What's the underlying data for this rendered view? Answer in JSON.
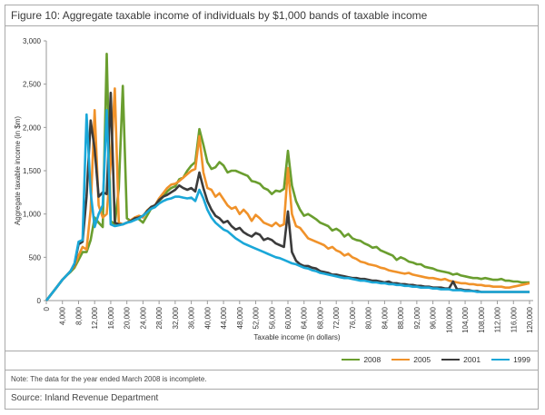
{
  "figure": {
    "title": "Figure 10: Aggregate taxable income of individuals by $1,000 bands of taxable income",
    "note": "Note: The data for the year ended March 2008 is incomplete.",
    "source": "Source: Inland Revenue Department"
  },
  "chart_data": {
    "type": "line",
    "title": "Figure 10: Aggregate taxable income of individuals by $1,000 bands of taxable income",
    "xlabel": "Taxable income (in dollars)",
    "ylabel": "Aggregate taxable income (in $m)",
    "xlim": [
      0,
      120000
    ],
    "ylim": [
      0,
      3000
    ],
    "x_ticks": [
      0,
      4000,
      8000,
      12000,
      16000,
      20000,
      24000,
      28000,
      32000,
      36000,
      40000,
      44000,
      48000,
      52000,
      56000,
      60000,
      64000,
      68000,
      72000,
      76000,
      80000,
      84000,
      88000,
      92000,
      96000,
      100000,
      104000,
      108000,
      112000,
      116000,
      120000
    ],
    "x_tick_labels": [
      "0",
      "4,000",
      "8,000",
      "12,000",
      "16,000",
      "20,000",
      "24,000",
      "28,000",
      "32,000",
      "36,000",
      "40,000",
      "44,000",
      "48,000",
      "52,000",
      "56,000",
      "60,000",
      "64,000",
      "68,000",
      "72,000",
      "76,000",
      "80,000",
      "84,000",
      "88,000",
      "92,000",
      "96,000",
      "100,000",
      "104,000",
      "108,000",
      "112,000",
      "116,000",
      "120,000"
    ],
    "y_ticks": [
      0,
      500,
      1000,
      1500,
      2000,
      2500,
      3000
    ],
    "y_tick_labels": [
      "0",
      "500",
      "1,000",
      "1,500",
      "2,000",
      "2,500",
      "3,000"
    ],
    "grid": false,
    "legend_position": "bottom-right",
    "x": [
      0,
      1000,
      2000,
      3000,
      4000,
      5000,
      6000,
      7000,
      8000,
      9000,
      10000,
      11000,
      12000,
      13000,
      14000,
      15000,
      16000,
      17000,
      18000,
      19000,
      20000,
      21000,
      22000,
      23000,
      24000,
      25000,
      26000,
      27000,
      28000,
      29000,
      30000,
      31000,
      32000,
      33000,
      34000,
      35000,
      36000,
      37000,
      38000,
      39000,
      40000,
      41000,
      42000,
      43000,
      44000,
      45000,
      46000,
      47000,
      48000,
      49000,
      50000,
      51000,
      52000,
      53000,
      54000,
      55000,
      56000,
      57000,
      58000,
      59000,
      60000,
      61000,
      62000,
      63000,
      64000,
      65000,
      66000,
      67000,
      68000,
      69000,
      70000,
      71000,
      72000,
      73000,
      74000,
      75000,
      76000,
      77000,
      78000,
      79000,
      80000,
      81000,
      82000,
      83000,
      84000,
      85000,
      86000,
      87000,
      88000,
      89000,
      90000,
      91000,
      92000,
      93000,
      94000,
      95000,
      96000,
      97000,
      98000,
      99000,
      100000,
      101000,
      102000,
      103000,
      104000,
      105000,
      106000,
      107000,
      108000,
      109000,
      110000,
      111000,
      112000,
      113000,
      114000,
      115000,
      116000,
      117000,
      118000,
      119000,
      120000
    ],
    "series": [
      {
        "name": "2008",
        "color": "#6a9e2f",
        "values": [
          0,
          60,
          120,
          180,
          240,
          290,
          330,
          380,
          470,
          560,
          560,
          700,
          960,
          900,
          850,
          2850,
          920,
          880,
          1300,
          2480,
          950,
          920,
          960,
          940,
          900,
          980,
          1060,
          1080,
          1150,
          1200,
          1260,
          1300,
          1320,
          1400,
          1420,
          1500,
          1560,
          1600,
          1980,
          1800,
          1600,
          1520,
          1540,
          1600,
          1560,
          1480,
          1500,
          1500,
          1480,
          1460,
          1440,
          1380,
          1370,
          1350,
          1300,
          1280,
          1230,
          1270,
          1260,
          1290,
          1730,
          1330,
          1150,
          1050,
          980,
          1000,
          970,
          940,
          900,
          880,
          860,
          810,
          830,
          800,
          740,
          770,
          720,
          700,
          690,
          660,
          640,
          610,
          620,
          580,
          560,
          540,
          520,
          470,
          500,
          480,
          450,
          440,
          420,
          420,
          390,
          380,
          370,
          350,
          340,
          330,
          320,
          300,
          310,
          290,
          280,
          270,
          260,
          260,
          250,
          260,
          250,
          240,
          240,
          250,
          230,
          230,
          220,
          220,
          210,
          210,
          210
        ]
      },
      {
        "name": "2005",
        "color": "#f0922a",
        "values": [
          0,
          60,
          120,
          180,
          240,
          290,
          340,
          400,
          520,
          620,
          590,
          1050,
          2200,
          1100,
          960,
          1000,
          1600,
          2450,
          900,
          880,
          900,
          930,
          960,
          980,
          960,
          1040,
          1080,
          1100,
          1180,
          1240,
          1300,
          1340,
          1350,
          1380,
          1420,
          1460,
          1500,
          1520,
          1900,
          1480,
          1300,
          1280,
          1200,
          1240,
          1170,
          1100,
          1060,
          1080,
          1000,
          1050,
          1000,
          920,
          990,
          950,
          900,
          880,
          860,
          900,
          860,
          880,
          1530,
          1000,
          860,
          840,
          780,
          720,
          700,
          680,
          660,
          640,
          600,
          620,
          580,
          560,
          520,
          540,
          500,
          480,
          450,
          440,
          420,
          410,
          400,
          380,
          370,
          350,
          340,
          330,
          320,
          310,
          320,
          300,
          290,
          280,
          270,
          260,
          260,
          250,
          240,
          250,
          230,
          220,
          210,
          200,
          200,
          190,
          190,
          180,
          180,
          170,
          170,
          160,
          160,
          160,
          150,
          150,
          160,
          170,
          180,
          190,
          200
        ]
      },
      {
        "name": "2001",
        "color": "#3b3b3b",
        "values": [
          0,
          60,
          120,
          180,
          240,
          290,
          340,
          420,
          650,
          680,
          1200,
          2080,
          1750,
          1200,
          1250,
          1230,
          2400,
          900,
          880,
          880,
          900,
          920,
          950,
          960,
          980,
          1030,
          1080,
          1100,
          1160,
          1200,
          1220,
          1250,
          1280,
          1330,
          1300,
          1280,
          1300,
          1260,
          1480,
          1300,
          1150,
          1050,
          980,
          950,
          900,
          920,
          860,
          820,
          840,
          790,
          760,
          740,
          780,
          760,
          700,
          720,
          700,
          660,
          640,
          620,
          1030,
          560,
          460,
          420,
          400,
          400,
          380,
          370,
          340,
          330,
          320,
          300,
          300,
          290,
          280,
          270,
          260,
          260,
          250,
          250,
          240,
          230,
          230,
          220,
          210,
          220,
          200,
          200,
          190,
          190,
          180,
          180,
          170,
          170,
          160,
          160,
          150,
          150,
          150,
          140,
          140,
          220,
          130,
          130,
          120,
          120,
          110,
          110,
          100,
          100,
          100,
          100,
          100,
          100,
          100,
          100,
          100,
          100,
          100,
          100,
          100
        ]
      },
      {
        "name": "1999",
        "color": "#1aa7d8",
        "values": [
          0,
          60,
          120,
          180,
          240,
          290,
          340,
          430,
          680,
          700,
          2150,
          1250,
          850,
          1000,
          1100,
          2200,
          880,
          860,
          870,
          880,
          900,
          910,
          930,
          950,
          980,
          1020,
          1060,
          1080,
          1120,
          1150,
          1170,
          1180,
          1200,
          1200,
          1190,
          1180,
          1190,
          1150,
          1280,
          1180,
          1050,
          960,
          900,
          860,
          820,
          800,
          760,
          720,
          690,
          660,
          640,
          620,
          600,
          580,
          560,
          540,
          520,
          500,
          490,
          470,
          450,
          430,
          420,
          400,
          380,
          370,
          350,
          340,
          320,
          310,
          300,
          290,
          280,
          270,
          260,
          260,
          250,
          240,
          230,
          230,
          220,
          210,
          210,
          200,
          200,
          190,
          190,
          180,
          180,
          170,
          170,
          160,
          160,
          150,
          150,
          150,
          140,
          140,
          130,
          130,
          130,
          120,
          120,
          120,
          110,
          110,
          110,
          100,
          100,
          100,
          100,
          100,
          100,
          100,
          100,
          100,
          100,
          100,
          100,
          100,
          100
        ]
      }
    ]
  }
}
